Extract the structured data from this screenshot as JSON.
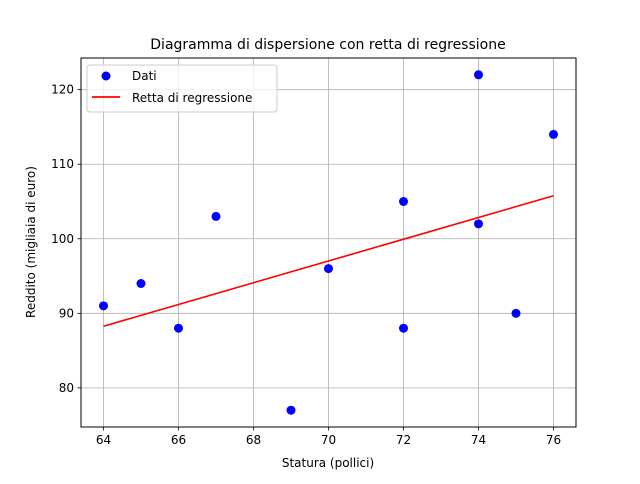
{
  "chart_data": {
    "type": "scatter",
    "title": "Diagramma di dispersione con retta di regressione",
    "xlabel": "Statura (pollici)",
    "ylabel": "Reddito (migliaia di euro)",
    "xlim": [
      63.4,
      76.6
    ],
    "ylim": [
      74.75,
      124.25
    ],
    "xticks": [
      64,
      66,
      68,
      70,
      72,
      74,
      76
    ],
    "yticks": [
      80,
      90,
      100,
      110,
      120
    ],
    "grid": true,
    "legend_position": "upper-left",
    "series": [
      {
        "name": "Dati",
        "kind": "scatter",
        "color": "#0000ff",
        "points": [
          {
            "x": 64,
            "y": 91
          },
          {
            "x": 65,
            "y": 94
          },
          {
            "x": 66,
            "y": 88
          },
          {
            "x": 67,
            "y": 103
          },
          {
            "x": 69,
            "y": 77
          },
          {
            "x": 70,
            "y": 96
          },
          {
            "x": 72,
            "y": 105
          },
          {
            "x": 72,
            "y": 88
          },
          {
            "x": 74,
            "y": 122
          },
          {
            "x": 74,
            "y": 102
          },
          {
            "x": 75,
            "y": 90
          },
          {
            "x": 76,
            "y": 114
          }
        ]
      },
      {
        "name": "Retta di regressione",
        "kind": "line",
        "color": "#ff0000",
        "points": [
          {
            "x": 64,
            "y": 88.27
          },
          {
            "x": 76,
            "y": 105.77
          }
        ]
      }
    ]
  }
}
